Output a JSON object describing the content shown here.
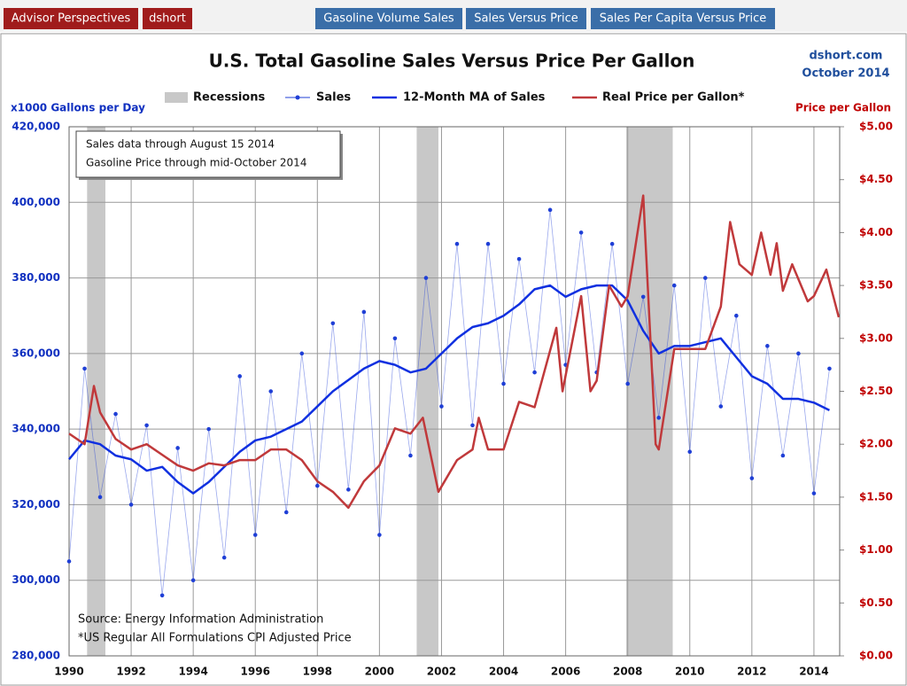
{
  "header": {
    "links": [
      "Advisor Perspectives",
      "dshort"
    ],
    "tabs": [
      "Gasoline Volume Sales",
      "Sales Versus Price",
      "Sales Per Capita Versus Price"
    ]
  },
  "chart_data": {
    "type": "line",
    "title": "U.S. Total Gasoline Sales Versus Price Per Gallon",
    "source_site": "dshort.com",
    "date": "October 2014",
    "y_label": "x1000  Gallons per Day",
    "y2_label": "Price per Gallon",
    "note": [
      "Sales data through August 15 2014",
      "Gasoline Price through mid-October 2014"
    ],
    "source": [
      "Source: Energy Information Administration",
      "*US Regular All Formulations CPI Adjusted Price"
    ],
    "recessions_name": "Recessions",
    "recessions_color": "#c8c8c8",
    "recessions": [
      [
        1990.58,
        1991.17
      ],
      [
        2001.2,
        2001.9
      ],
      [
        2007.95,
        2009.45
      ]
    ],
    "xlim": [
      1990,
      2014.83
    ],
    "xticks": [
      1990,
      1992,
      1994,
      1996,
      1998,
      2000,
      2002,
      2004,
      2006,
      2008,
      2010,
      2012,
      2014
    ],
    "ylim": [
      280000,
      420000
    ],
    "yticks": [
      {
        "value": 280000,
        "label": "280,000"
      },
      {
        "value": 300000,
        "label": "300,000"
      },
      {
        "value": 320000,
        "label": "320,000"
      },
      {
        "value": 340000,
        "label": "340,000"
      },
      {
        "value": 360000,
        "label": "360,000"
      },
      {
        "value": 380000,
        "label": "380,000"
      },
      {
        "value": 400000,
        "label": "400,000"
      },
      {
        "value": 420000,
        "label": "420,000"
      }
    ],
    "y2lim": [
      0,
      5
    ],
    "y2ticks": [
      {
        "value": 0,
        "label": "$0.00"
      },
      {
        "value": 0.5,
        "label": "$0.50"
      },
      {
        "value": 1,
        "label": "$1.00"
      },
      {
        "value": 1.5,
        "label": "$1.50"
      },
      {
        "value": 2,
        "label": "$2.00"
      },
      {
        "value": 2.5,
        "label": "$2.50"
      },
      {
        "value": 3,
        "label": "$3.00"
      },
      {
        "value": 3.5,
        "label": "$3.50"
      },
      {
        "value": 4,
        "label": "$4.00"
      },
      {
        "value": 4.5,
        "label": "$4.50"
      },
      {
        "value": 5,
        "label": "$5.00"
      }
    ],
    "grid": true,
    "series": [
      {
        "name": "Sales",
        "color": "#1f3fd6",
        "markers": true,
        "width": 0.8,
        "x": [
          1990.0,
          1990.5,
          1991.0,
          1991.5,
          1992.0,
          1992.5,
          1993.0,
          1993.5,
          1994.0,
          1994.5,
          1995.0,
          1995.5,
          1996.0,
          1996.5,
          1997.0,
          1997.5,
          1998.0,
          1998.5,
          1999.0,
          1999.5,
          2000.0,
          2000.5,
          2001.0,
          2001.5,
          2002.0,
          2002.5,
          2003.0,
          2003.5,
          2004.0,
          2004.5,
          2005.0,
          2005.5,
          2006.0,
          2006.5,
          2007.0,
          2007.5,
          2008.0,
          2008.5,
          2009.0,
          2009.5,
          2010.0,
          2010.5,
          2011.0,
          2011.5,
          2012.0,
          2012.5,
          2013.0,
          2013.5,
          2014.0,
          2014.5
        ],
        "values": [
          305000,
          356000,
          322000,
          344000,
          320000,
          341000,
          296000,
          335000,
          300000,
          340000,
          306000,
          354000,
          312000,
          350000,
          318000,
          360000,
          325000,
          368000,
          324000,
          371000,
          312000,
          364000,
          333000,
          380000,
          346000,
          389000,
          341000,
          389000,
          352000,
          385000,
          355000,
          398000,
          357000,
          392000,
          355000,
          389000,
          352000,
          375000,
          343000,
          378000,
          334000,
          380000,
          346000,
          370000,
          327000,
          362000,
          333000,
          360000,
          323000,
          356000
        ]
      },
      {
        "name": "12-Month MA of Sales",
        "color": "#1030e0",
        "markers": false,
        "width": 2.5,
        "x": [
          1990.0,
          1990.5,
          1991.0,
          1991.5,
          1992.0,
          1992.5,
          1993.0,
          1993.5,
          1994.0,
          1994.5,
          1995.0,
          1995.5,
          1996.0,
          1996.5,
          1997.0,
          1997.5,
          1998.0,
          1998.5,
          1999.0,
          1999.5,
          2000.0,
          2000.5,
          2001.0,
          2001.5,
          2002.0,
          2002.5,
          2003.0,
          2003.5,
          2004.0,
          2004.5,
          2005.0,
          2005.5,
          2006.0,
          2006.5,
          2007.0,
          2007.5,
          2008.0,
          2008.5,
          2009.0,
          2009.5,
          2010.0,
          2010.5,
          2011.0,
          2011.5,
          2012.0,
          2012.5,
          2013.0,
          2013.5,
          2014.0,
          2014.5
        ],
        "values": [
          332000,
          337000,
          336000,
          333000,
          332000,
          329000,
          330000,
          326000,
          323000,
          326000,
          330000,
          334000,
          337000,
          338000,
          340000,
          342000,
          346000,
          350000,
          353000,
          356000,
          358000,
          357000,
          355000,
          356000,
          360000,
          364000,
          367000,
          368000,
          370000,
          373000,
          377000,
          378000,
          375000,
          377000,
          378000,
          378000,
          374000,
          366000,
          360000,
          362000,
          362000,
          363000,
          364000,
          359000,
          354000,
          352000,
          348000,
          348000,
          347000,
          345000
        ]
      },
      {
        "name": "Real Price per Gallon*",
        "color": "#c0393b",
        "markers": false,
        "width": 2.5,
        "axis": "y2",
        "x": [
          1990.0,
          1990.5,
          1990.8,
          1991.0,
          1991.5,
          1992.0,
          1992.5,
          1993.0,
          1993.5,
          1994.0,
          1994.5,
          1995.0,
          1995.5,
          1996.0,
          1996.5,
          1997.0,
          1997.5,
          1998.0,
          1998.5,
          1999.0,
          1999.5,
          2000.0,
          2000.5,
          2001.0,
          2001.4,
          2001.9,
          2002.5,
          2003.0,
          2003.2,
          2003.5,
          2004.0,
          2004.5,
          2005.0,
          2005.7,
          2005.9,
          2006.5,
          2006.8,
          2007.0,
          2007.4,
          2007.8,
          2008.0,
          2008.5,
          2008.9,
          2009.0,
          2009.5,
          2010.0,
          2010.5,
          2011.0,
          2011.3,
          2011.6,
          2012.0,
          2012.3,
          2012.6,
          2012.8,
          2013.0,
          2013.3,
          2013.8,
          2014.0,
          2014.4,
          2014.8
        ],
        "values": [
          2.1,
          2.0,
          2.55,
          2.3,
          2.05,
          1.95,
          2.0,
          1.9,
          1.8,
          1.75,
          1.82,
          1.8,
          1.85,
          1.85,
          1.95,
          1.95,
          1.85,
          1.65,
          1.55,
          1.4,
          1.65,
          1.8,
          2.15,
          2.1,
          2.25,
          1.55,
          1.85,
          1.95,
          2.25,
          1.95,
          1.95,
          2.4,
          2.35,
          3.1,
          2.5,
          3.4,
          2.5,
          2.6,
          3.5,
          3.3,
          3.4,
          4.35,
          2.0,
          1.95,
          2.9,
          2.9,
          2.9,
          3.3,
          4.1,
          3.7,
          3.6,
          4.0,
          3.6,
          3.9,
          3.45,
          3.7,
          3.35,
          3.4,
          3.65,
          3.2
        ]
      }
    ]
  }
}
